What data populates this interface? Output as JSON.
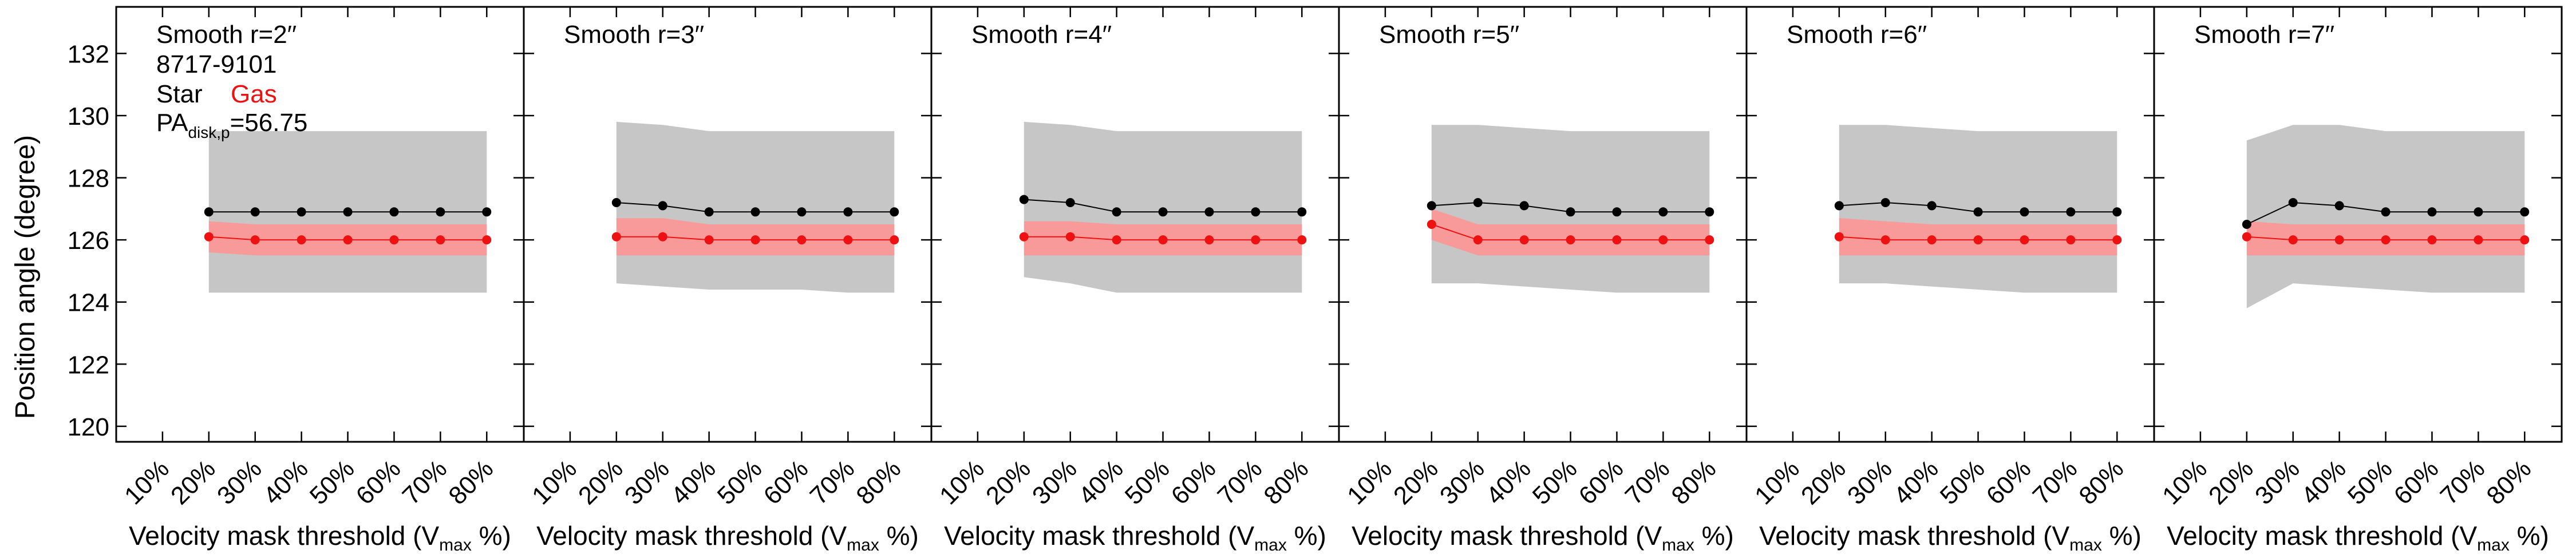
{
  "figure": {
    "ylabel": "Position angle (degree)",
    "xlabel_main": "Velocity mask threshold (V",
    "xlabel_sub": "max",
    "xlabel_end": " %)",
    "legend": {
      "object_id": "8717-9101",
      "star_label": "Star",
      "gas_label": "Gas",
      "pa_main": "PA",
      "pa_sub": "disk,p",
      "pa_value": "=56.75"
    }
  },
  "chart_data": {
    "type": "line",
    "x_tick_labels": [
      "10%",
      "20%",
      "30%",
      "40%",
      "50%",
      "60%",
      "70%",
      "80%"
    ],
    "x_ticks": [
      10,
      20,
      30,
      40,
      50,
      60,
      70,
      80
    ],
    "xlim": [
      0,
      88
    ],
    "ylim": [
      119.5,
      133.5
    ],
    "y_ticks": [
      120,
      122,
      124,
      126,
      128,
      130,
      132
    ],
    "grid": false,
    "colors": {
      "star": "#000000",
      "gas": "#ee1111",
      "gas_band": "#f99a9a",
      "star_band": "#c6c6c6"
    },
    "panels": [
      {
        "title": "Smooth r=2′′",
        "x": [
          20,
          30,
          40,
          50,
          60,
          70,
          80
        ],
        "star": [
          126.9,
          126.9,
          126.9,
          126.9,
          126.9,
          126.9,
          126.9
        ],
        "gas": [
          126.1,
          126.0,
          126.0,
          126.0,
          126.0,
          126.0,
          126.0
        ],
        "star_band_lo": [
          124.3,
          124.3,
          124.3,
          124.3,
          124.3,
          124.3,
          124.3
        ],
        "star_band_hi": [
          129.5,
          129.5,
          129.5,
          129.5,
          129.5,
          129.5,
          129.5
        ],
        "gas_band_lo": [
          125.6,
          125.5,
          125.5,
          125.5,
          125.5,
          125.5,
          125.5
        ],
        "gas_band_hi": [
          126.6,
          126.5,
          126.5,
          126.5,
          126.5,
          126.5,
          126.5
        ]
      },
      {
        "title": "Smooth r=3′′",
        "x": [
          20,
          30,
          40,
          50,
          60,
          70,
          80
        ],
        "star": [
          127.2,
          127.1,
          126.9,
          126.9,
          126.9,
          126.9,
          126.9
        ],
        "gas": [
          126.1,
          126.1,
          126.0,
          126.0,
          126.0,
          126.0,
          126.0
        ],
        "star_band_lo": [
          124.6,
          124.5,
          124.4,
          124.4,
          124.4,
          124.3,
          124.3
        ],
        "star_band_hi": [
          129.8,
          129.7,
          129.5,
          129.5,
          129.5,
          129.5,
          129.5
        ],
        "gas_band_lo": [
          125.5,
          125.5,
          125.5,
          125.5,
          125.5,
          125.5,
          125.5
        ],
        "gas_band_hi": [
          126.7,
          126.7,
          126.5,
          126.5,
          126.5,
          126.5,
          126.5
        ]
      },
      {
        "title": "Smooth r=4′′",
        "x": [
          20,
          30,
          40,
          50,
          60,
          70,
          80
        ],
        "star": [
          127.3,
          127.2,
          126.9,
          126.9,
          126.9,
          126.9,
          126.9
        ],
        "gas": [
          126.1,
          126.1,
          126.0,
          126.0,
          126.0,
          126.0,
          126.0
        ],
        "star_band_lo": [
          124.8,
          124.6,
          124.3,
          124.3,
          124.3,
          124.3,
          124.3
        ],
        "star_band_hi": [
          129.8,
          129.7,
          129.5,
          129.5,
          129.5,
          129.5,
          129.5
        ],
        "gas_band_lo": [
          125.5,
          125.5,
          125.5,
          125.5,
          125.5,
          125.5,
          125.5
        ],
        "gas_band_hi": [
          126.6,
          126.6,
          126.5,
          126.5,
          126.5,
          126.5,
          126.5
        ]
      },
      {
        "title": "Smooth r=5′′",
        "x": [
          20,
          30,
          40,
          50,
          60,
          70,
          80
        ],
        "star": [
          127.1,
          127.2,
          127.1,
          126.9,
          126.9,
          126.9,
          126.9
        ],
        "gas": [
          126.5,
          126.0,
          126.0,
          126.0,
          126.0,
          126.0,
          126.0
        ],
        "star_band_lo": [
          124.6,
          124.6,
          124.5,
          124.4,
          124.3,
          124.3,
          124.3
        ],
        "star_band_hi": [
          129.7,
          129.7,
          129.6,
          129.5,
          129.5,
          129.5,
          129.5
        ],
        "gas_band_lo": [
          126.0,
          125.5,
          125.5,
          125.5,
          125.5,
          125.5,
          125.5
        ],
        "gas_band_hi": [
          127.0,
          126.5,
          126.5,
          126.5,
          126.5,
          126.5,
          126.5
        ]
      },
      {
        "title": "Smooth r=6′′",
        "x": [
          20,
          30,
          40,
          50,
          60,
          70,
          80
        ],
        "star": [
          127.1,
          127.2,
          127.1,
          126.9,
          126.9,
          126.9,
          126.9
        ],
        "gas": [
          126.1,
          126.0,
          126.0,
          126.0,
          126.0,
          126.0,
          126.0
        ],
        "star_band_lo": [
          124.6,
          124.6,
          124.5,
          124.4,
          124.3,
          124.3,
          124.3
        ],
        "star_band_hi": [
          129.7,
          129.7,
          129.6,
          129.5,
          129.5,
          129.5,
          129.5
        ],
        "gas_band_lo": [
          125.5,
          125.5,
          125.5,
          125.5,
          125.5,
          125.5,
          125.5
        ],
        "gas_band_hi": [
          126.7,
          126.6,
          126.5,
          126.5,
          126.5,
          126.5,
          126.5
        ]
      },
      {
        "title": "Smooth r=7′′",
        "x": [
          20,
          30,
          40,
          50,
          60,
          70,
          80
        ],
        "star": [
          126.5,
          127.2,
          127.1,
          126.9,
          126.9,
          126.9,
          126.9
        ],
        "gas": [
          126.1,
          126.0,
          126.0,
          126.0,
          126.0,
          126.0,
          126.0
        ],
        "star_band_lo": [
          123.8,
          124.6,
          124.5,
          124.4,
          124.3,
          124.3,
          124.3
        ],
        "star_band_hi": [
          129.2,
          129.7,
          129.7,
          129.5,
          129.5,
          129.5,
          129.5
        ],
        "gas_band_lo": [
          125.5,
          125.5,
          125.5,
          125.5,
          125.5,
          125.5,
          125.5
        ],
        "gas_band_hi": [
          126.6,
          126.5,
          126.5,
          126.5,
          126.5,
          126.5,
          126.5
        ]
      }
    ]
  }
}
